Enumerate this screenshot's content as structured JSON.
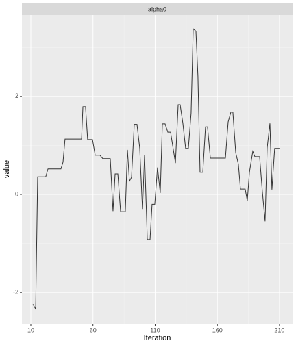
{
  "chart_data": {
    "type": "line",
    "strip": "alpha0",
    "xlabel": "Iteration",
    "ylabel": "value",
    "x": [
      11.7,
      13.9,
      15.5,
      22,
      23.8,
      34.2,
      35.9,
      37.5,
      50.8,
      51.9,
      54,
      55.7,
      59.6,
      61.8,
      65.6,
      67.9,
      73.9,
      76.1,
      77.8,
      80,
      82.2,
      86,
      87.7,
      89.3,
      91,
      93.2,
      95.4,
      97.6,
      99.8,
      101.5,
      103.7,
      105.9,
      107.5,
      109.7,
      111.9,
      114.1,
      115.8,
      118,
      120.2,
      122.4,
      126.3,
      128.5,
      130.1,
      132.3,
      134.5,
      136.7,
      138.9,
      140.6,
      142.8,
      144.4,
      146.1,
      148.3,
      150.5,
      152.1,
      154.4,
      166.5,
      168.7,
      170.9,
      172.5,
      174.8,
      176.9,
      178.6,
      182.4,
      184.1,
      185.8,
      188.5,
      190.2,
      194,
      196.2,
      198.4,
      200.1,
      202.3,
      203.9,
      206.1,
      210
    ],
    "values": [
      -2.24,
      -2.34,
      0.36,
      0.36,
      0.52,
      0.52,
      0.66,
      1.13,
      1.13,
      1.79,
      1.79,
      1.12,
      1.12,
      0.8,
      0.8,
      0.73,
      0.73,
      -0.34,
      0.42,
      0.42,
      -0.35,
      -0.35,
      0.91,
      0.27,
      0.35,
      1.43,
      1.43,
      0.94,
      -0.31,
      0.81,
      -0.92,
      -0.92,
      -0.2,
      -0.2,
      0.55,
      0.03,
      1.44,
      1.44,
      1.27,
      1.27,
      0.64,
      1.83,
      1.83,
      1.45,
      0.94,
      0.94,
      1.66,
      3.38,
      3.33,
      2.41,
      0.45,
      0.45,
      1.38,
      1.38,
      0.74,
      0.74,
      1.48,
      1.68,
      1.68,
      0.85,
      0.62,
      0.11,
      0.11,
      -0.13,
      0.45,
      0.88,
      0.77,
      0.77,
      0.06,
      -0.55,
      0.95,
      1.45,
      0.1,
      0.94,
      0.94
    ],
    "color": "#333333",
    "xlim": [
      2.84,
      220.5
    ],
    "xticks": [
      10,
      60,
      110,
      160,
      210
    ],
    "ylim": [
      -2.64,
      3.66
    ],
    "yticks": [
      -2,
      0,
      2
    ],
    "grid": true
  }
}
